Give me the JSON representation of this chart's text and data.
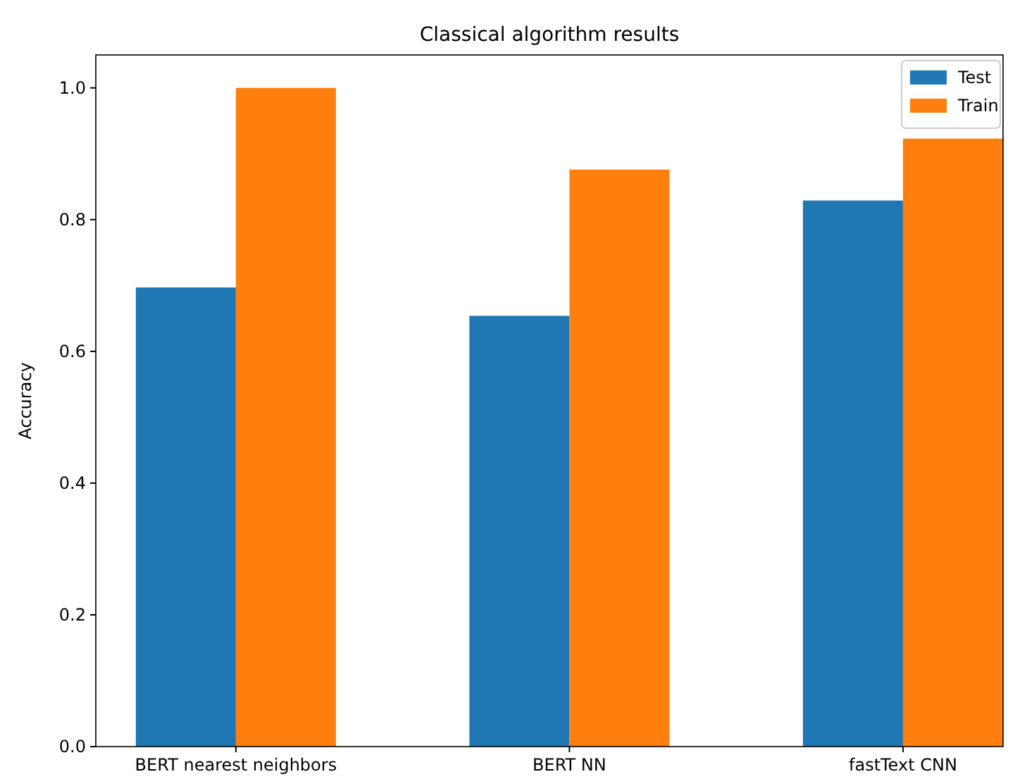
{
  "chart_data": {
    "type": "bar",
    "title": "Classical algorithm results",
    "ylabel": "Accuracy",
    "categories": [
      "BERT nearest neighbors",
      "BERT NN",
      "fastText CNN"
    ],
    "series": [
      {
        "name": "Test",
        "color": "#1f77b4",
        "values": [
          0.697,
          0.654,
          0.829
        ]
      },
      {
        "name": "Train",
        "color": "#ff7f0e",
        "values": [
          1.0,
          0.876,
          0.923
        ]
      }
    ],
    "ylim": [
      0,
      1.05
    ],
    "yticks": [
      {
        "value": 0,
        "label": "0.0"
      },
      {
        "value": 0.2,
        "label": "0.2"
      },
      {
        "value": 0.4,
        "label": "0.4"
      },
      {
        "value": 0.6,
        "label": "0.6"
      },
      {
        "value": 0.8,
        "label": "0.8"
      },
      {
        "value": 1,
        "label": "1.0"
      }
    ],
    "grid": false,
    "legend": "top right"
  }
}
